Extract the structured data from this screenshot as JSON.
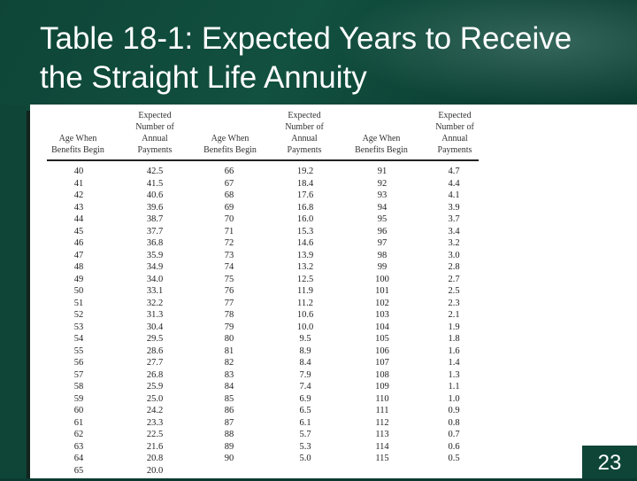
{
  "slide": {
    "title": "Table 18-1:  Expected Years to Receive the Straight Life Annuity",
    "page_number": "23"
  },
  "table": {
    "headers": {
      "age": "Age When Benefits Begin",
      "payments": "Expected Number of Annual Payments"
    },
    "groups": [
      {
        "ages": [
          "40",
          "41",
          "42",
          "43",
          "44",
          "45",
          "46",
          "47",
          "48",
          "49",
          "50",
          "51",
          "52",
          "53",
          "54",
          "55",
          "56",
          "57",
          "58",
          "59",
          "60",
          "61",
          "62",
          "63",
          "64",
          "65"
        ],
        "payments": [
          "42.5",
          "41.5",
          "40.6",
          "39.6",
          "38.7",
          "37.7",
          "36.8",
          "35.9",
          "34.9",
          "34.0",
          "33.1",
          "32.2",
          "31.3",
          "30.4",
          "29.5",
          "28.6",
          "27.7",
          "26.8",
          "25.9",
          "25.0",
          "24.2",
          "23.3",
          "22.5",
          "21.6",
          "20.8",
          "20.0"
        ]
      },
      {
        "ages": [
          "66",
          "67",
          "68",
          "69",
          "70",
          "71",
          "72",
          "73",
          "74",
          "75",
          "76",
          "77",
          "78",
          "79",
          "80",
          "81",
          "82",
          "83",
          "84",
          "85",
          "86",
          "87",
          "88",
          "89",
          "90"
        ],
        "payments": [
          "19.2",
          "18.4",
          "17.6",
          "16.8",
          "16.0",
          "15.3",
          "14.6",
          "13.9",
          "13.2",
          "12.5",
          "11.9",
          "11.2",
          "10.6",
          "10.0",
          "9.5",
          "8.9",
          "8.4",
          "7.9",
          "7.4",
          "6.9",
          "6.5",
          "6.1",
          "5.7",
          "5.3",
          "5.0"
        ]
      },
      {
        "ages": [
          "91",
          "92",
          "93",
          "94",
          "95",
          "96",
          "97",
          "98",
          "99",
          "100",
          "101",
          "102",
          "103",
          "104",
          "105",
          "106",
          "107",
          "108",
          "109",
          "110",
          "111",
          "112",
          "113",
          "114",
          "115"
        ],
        "payments": [
          "4.7",
          "4.4",
          "4.1",
          "3.9",
          "3.7",
          "3.4",
          "3.2",
          "3.0",
          "2.8",
          "2.7",
          "2.5",
          "2.3",
          "2.1",
          "1.9",
          "1.8",
          "1.6",
          "1.4",
          "1.3",
          "1.1",
          "1.0",
          "0.9",
          "0.8",
          "0.7",
          "0.6",
          "0.5"
        ]
      }
    ]
  }
}
